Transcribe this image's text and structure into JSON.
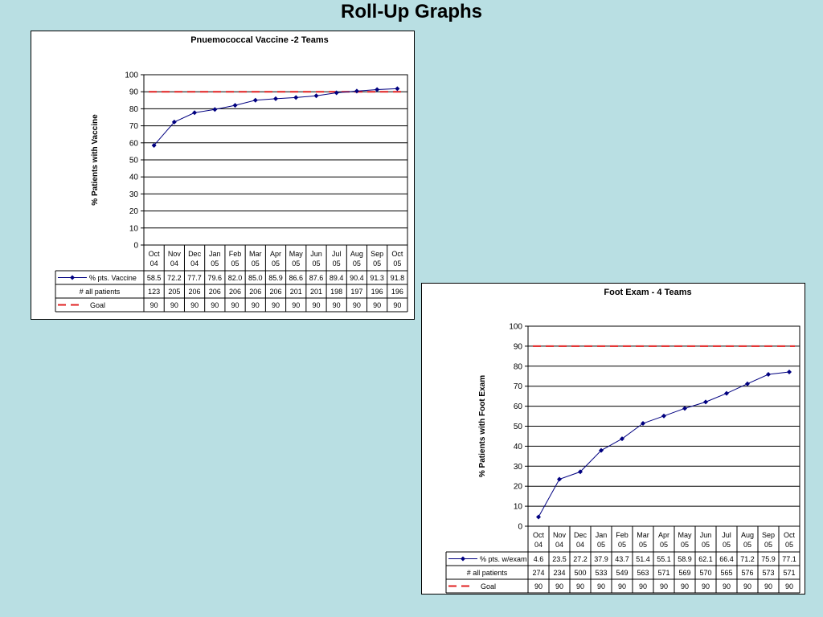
{
  "page": {
    "title": "Roll-Up Graphs"
  },
  "chart_data": [
    {
      "type": "line",
      "title": "Pnuemococcal Vaccine -2 Teams",
      "ylabel": "% Patients with Vaccine",
      "xlabel": "",
      "ylim": [
        0,
        100
      ],
      "yticks": [
        "0",
        "10",
        "20",
        "30",
        "40",
        "50",
        "60",
        "70",
        "80",
        "90",
        "100"
      ],
      "grid": true,
      "categories_top": [
        "Oct",
        "Nov",
        "Dec",
        "Jan",
        "Feb",
        "Mar",
        "Apr",
        "May",
        "Jun",
        "Jul",
        "Aug",
        "Sep",
        "Oct"
      ],
      "categories_bottom": [
        "04",
        "04",
        "04",
        "05",
        "05",
        "05",
        "05",
        "05",
        "05",
        "05",
        "05",
        "05",
        "05"
      ],
      "series": [
        {
          "name": "% pts. Vaccine",
          "color": "#000080",
          "marker": "diamond",
          "values": [
            58.5,
            72.2,
            77.7,
            79.6,
            82.0,
            85.0,
            85.9,
            86.6,
            87.6,
            89.4,
            90.4,
            91.3,
            91.8
          ],
          "labels": [
            "58.5",
            "72.2",
            "77.7",
            "79.6",
            "82.0",
            "85.0",
            "85.9",
            "86.6",
            "87.6",
            "89.4",
            "90.4",
            "91.3",
            "91.8"
          ]
        },
        {
          "name": "Goal",
          "color": "#e02020",
          "dashed": true,
          "values": [
            90,
            90,
            90,
            90,
            90,
            90,
            90,
            90,
            90,
            90,
            90,
            90,
            90
          ],
          "labels": [
            "90",
            "90",
            "90",
            "90",
            "90",
            "90",
            "90",
            "90",
            "90",
            "90",
            "90",
            "90",
            "90"
          ]
        }
      ],
      "table_row": {
        "name": "# all patients",
        "labels": [
          "123",
          "205",
          "206",
          "206",
          "206",
          "206",
          "206",
          "201",
          "201",
          "198",
          "197",
          "196",
          "196"
        ]
      }
    },
    {
      "type": "line",
      "title": "Foot Exam - 4 Teams",
      "ylabel": "% Patients with Foot Exam",
      "xlabel": "",
      "ylim": [
        0,
        100
      ],
      "yticks": [
        "0",
        "10",
        "20",
        "30",
        "40",
        "50",
        "60",
        "70",
        "80",
        "90",
        "100"
      ],
      "grid": true,
      "categories_top": [
        "Oct",
        "Nov",
        "Dec",
        "Jan",
        "Feb",
        "Mar",
        "Apr",
        "May",
        "Jun",
        "Jul",
        "Aug",
        "Sep",
        "Oct"
      ],
      "categories_bottom": [
        "04",
        "04",
        "04",
        "05",
        "05",
        "05",
        "05",
        "05",
        "05",
        "05",
        "05",
        "05",
        "05"
      ],
      "series": [
        {
          "name": "% pts. w/exam",
          "color": "#000080",
          "marker": "diamond",
          "values": [
            4.6,
            23.5,
            27.2,
            37.9,
            43.7,
            51.4,
            55.1,
            58.9,
            62.1,
            66.4,
            71.2,
            75.9,
            77.1
          ],
          "labels": [
            "4.6",
            "23.5",
            "27.2",
            "37.9",
            "43.7",
            "51.4",
            "55.1",
            "58.9",
            "62.1",
            "66.4",
            "71.2",
            "75.9",
            "77.1"
          ]
        },
        {
          "name": "Goal",
          "color": "#e02020",
          "dashed": true,
          "values": [
            90,
            90,
            90,
            90,
            90,
            90,
            90,
            90,
            90,
            90,
            90,
            90,
            90
          ],
          "labels": [
            "90",
            "90",
            "90",
            "90",
            "90",
            "90",
            "90",
            "90",
            "90",
            "90",
            "90",
            "90",
            "90"
          ]
        }
      ],
      "table_row": {
        "name": "# all patients",
        "labels": [
          "274",
          "234",
          "500",
          "533",
          "549",
          "563",
          "571",
          "569",
          "570",
          "565",
          "576",
          "573",
          "571"
        ]
      }
    }
  ]
}
